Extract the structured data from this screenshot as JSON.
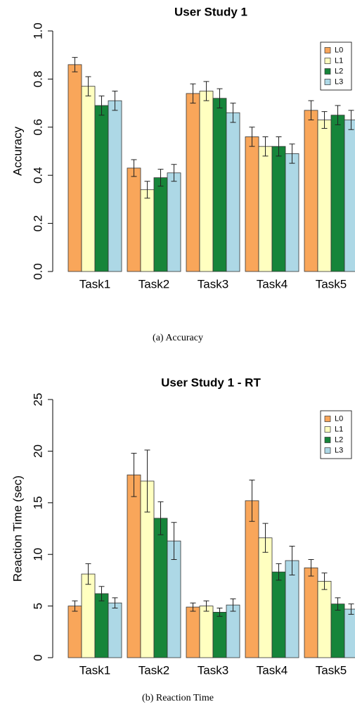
{
  "chart_data": [
    {
      "type": "bar",
      "title": "User  Study 1",
      "y_label": "Accuracy",
      "caption": "(a)  Accuracy",
      "categories": [
        "Task1",
        "Task2",
        "Task3",
        "Task4",
        "Task5"
      ],
      "series": [
        {
          "name": "L0",
          "color": "#f9a65a",
          "values": [
            0.86,
            0.43,
            0.74,
            0.56,
            0.67
          ],
          "errors": [
            0.03,
            0.035,
            0.04,
            0.04,
            0.04
          ]
        },
        {
          "name": "L1",
          "color": "#ffffc0",
          "values": [
            0.77,
            0.34,
            0.75,
            0.52,
            0.63
          ],
          "errors": [
            0.04,
            0.035,
            0.04,
            0.04,
            0.035
          ]
        },
        {
          "name": "L2",
          "color": "#16853a",
          "values": [
            0.69,
            0.39,
            0.72,
            0.52,
            0.65
          ],
          "errors": [
            0.04,
            0.035,
            0.04,
            0.04,
            0.04
          ]
        },
        {
          "name": "L3",
          "color": "#add8e6",
          "values": [
            0.71,
            0.41,
            0.66,
            0.49,
            0.63
          ],
          "errors": [
            0.04,
            0.035,
            0.04,
            0.04,
            0.04
          ]
        }
      ],
      "ylim": [
        0,
        1
      ],
      "yticks": [
        {
          "value": 0,
          "label": "0.0"
        },
        0.2,
        0.4,
        0.6,
        0.8,
        {
          "value": 1,
          "label": "1.0"
        }
      ],
      "grid": false,
      "legend": "top-right"
    },
    {
      "type": "bar",
      "title": "User  Study 1 - RT",
      "y_label": "Reaction Time (sec)",
      "caption": "(b)  Reaction Time",
      "categories": [
        "Task1",
        "Task2",
        "Task3",
        "Task4",
        "Task5"
      ],
      "series": [
        {
          "name": "L0",
          "color": "#f9a65a",
          "values": [
            5.0,
            17.7,
            4.9,
            15.2,
            8.7
          ],
          "errors": [
            0.5,
            2.1,
            0.4,
            2.0,
            0.8
          ]
        },
        {
          "name": "L1",
          "color": "#ffffc0",
          "values": [
            8.1,
            17.1,
            5.0,
            11.6,
            7.4
          ],
          "errors": [
            1.0,
            3.0,
            0.5,
            1.4,
            0.8
          ]
        },
        {
          "name": "L2",
          "color": "#16853a",
          "values": [
            6.2,
            13.5,
            4.4,
            8.3,
            5.2
          ],
          "errors": [
            0.7,
            1.6,
            0.4,
            0.8,
            0.6
          ]
        },
        {
          "name": "L3",
          "color": "#add8e6",
          "values": [
            5.3,
            11.3,
            5.1,
            9.4,
            4.7
          ],
          "errors": [
            0.5,
            1.8,
            0.6,
            1.4,
            0.5
          ]
        }
      ],
      "ylim": [
        0,
        25
      ],
      "yticks": [
        0,
        5,
        10,
        15,
        20,
        25
      ],
      "grid": false,
      "legend": "top-right"
    }
  ]
}
